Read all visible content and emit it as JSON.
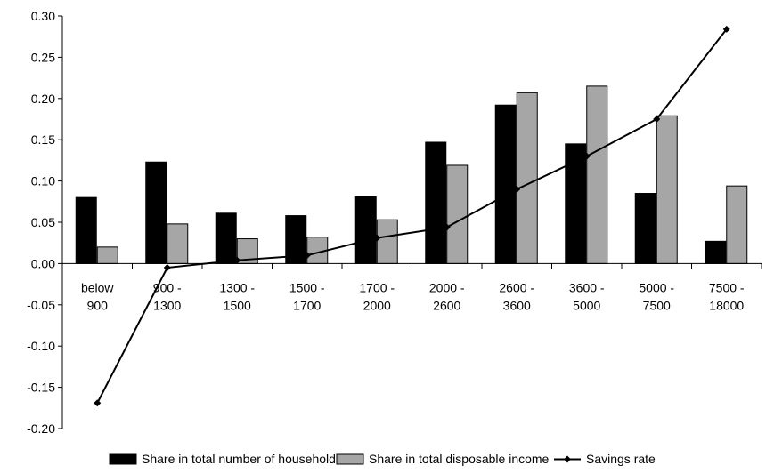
{
  "chart_data": {
    "type": "bar",
    "categories": [
      [
        "below",
        "900"
      ],
      [
        "900 -",
        "1300"
      ],
      [
        "1300 -",
        "1500"
      ],
      [
        "1500 -",
        "1700"
      ],
      [
        "1700 -",
        "2000"
      ],
      [
        "2000 -",
        "2600"
      ],
      [
        "2600 -",
        "3600"
      ],
      [
        "3600 -",
        "5000"
      ],
      [
        "5000 -",
        "7500"
      ],
      [
        "7500 -",
        "18000"
      ]
    ],
    "series": [
      {
        "name": "Share in total number of households",
        "type": "bar",
        "color": "#000000",
        "values": [
          0.08,
          0.123,
          0.061,
          0.058,
          0.081,
          0.147,
          0.192,
          0.145,
          0.085,
          0.027
        ]
      },
      {
        "name": "Share in total disposable income",
        "type": "bar",
        "color": "#a6a6a6",
        "values": [
          0.02,
          0.048,
          0.03,
          0.032,
          0.053,
          0.119,
          0.207,
          0.215,
          0.179,
          0.094
        ]
      },
      {
        "name": "Savings rate",
        "type": "line",
        "color": "#000000",
        "values": [
          -0.169,
          -0.005,
          0.004,
          0.01,
          0.031,
          0.044,
          0.09,
          0.13,
          0.175,
          0.284
        ]
      }
    ],
    "ylim": [
      -0.2,
      0.3
    ],
    "ytick_step": 0.05,
    "yticks": [
      "-0.20",
      "-0.15",
      "-0.10",
      "-0.05",
      "0.00",
      "0.05",
      "0.10",
      "0.15",
      "0.20",
      "0.25",
      "0.30"
    ],
    "grid": false,
    "legend_position": "bottom"
  }
}
